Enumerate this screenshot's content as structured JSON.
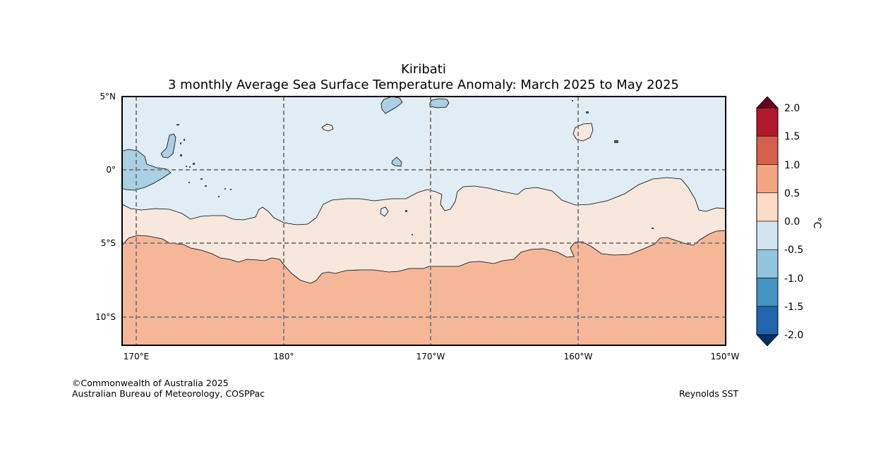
{
  "title": {
    "region": "Kiribati",
    "subtitle": "3 monthly Average Sea Surface Temperature Anomaly: March 2025 to May 2025"
  },
  "map": {
    "lat_labels": [
      "5°N",
      "0°",
      "5°S",
      "10°S"
    ],
    "lon_labels": [
      "170°E",
      "180°",
      "170°W",
      "160°W",
      "150°W"
    ],
    "extent": {
      "lon_min": 169,
      "lon_max": 210,
      "lat_min": -12,
      "lat_max": 5
    }
  },
  "legend": {
    "unit": "°C",
    "ticks": [
      "2.0",
      "1.5",
      "1.0",
      "0.5",
      "0.0",
      "-0.5",
      "-1.0",
      "-1.5",
      "-2.0"
    ],
    "colors": {
      "above_2": "#67001f",
      "c_1_5_to_2": "#b2182b",
      "c_1_to_1_5": "#d6604d",
      "c_0_5_to_1": "#f4a582",
      "c_0_to_0_5": "#fddbc7",
      "c_m0_5_to_0": "#d1e5f0",
      "c_m1_to_m0_5": "#92c5de",
      "c_m1_5_to_m1": "#4393c3",
      "c_m2_to_m1_5": "#2166ac",
      "below_m2": "#053061"
    }
  },
  "footer": {
    "copyright": "©Commonwealth of Australia 2025",
    "agency": "Australian Bureau of Meteorology, COSPPac",
    "source": "Reynolds SST"
  }
}
